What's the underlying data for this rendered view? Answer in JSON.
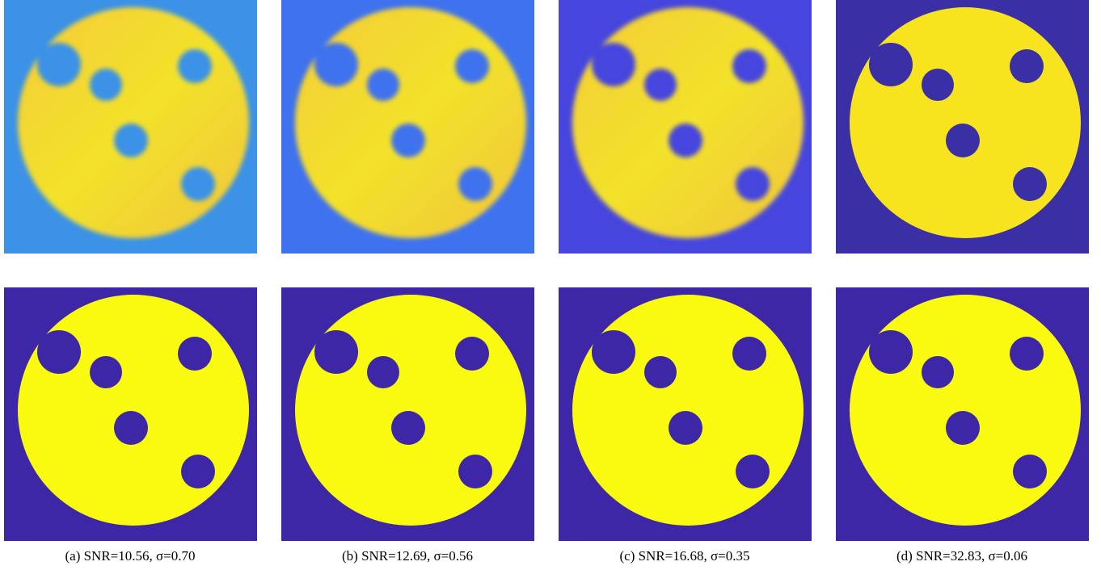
{
  "figure": {
    "captions": [
      "(a) SNR=10.56, σ=0.70",
      "(b) SNR=12.69, σ=0.56",
      "(c) SNR=16.68, σ=0.35",
      "(d) SNR=32.83, σ=0.06"
    ]
  }
}
